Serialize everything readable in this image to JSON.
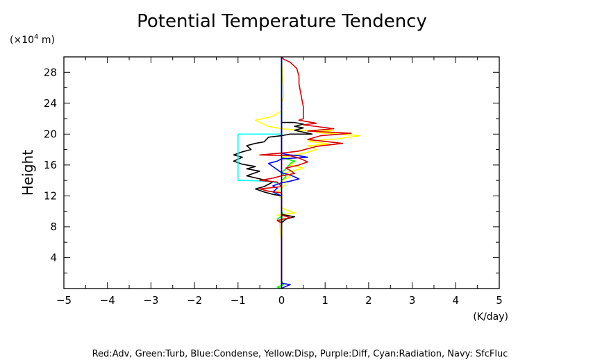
{
  "chart_data": {
    "type": "line",
    "title": "Potential Temperature Tendency",
    "ylabel": "Height",
    "y_unit_prefix": "(×10",
    "y_unit_exp": "4",
    "y_unit_suffix": " m)",
    "x_unit": "(K/day)",
    "xlim": [
      -5,
      5
    ],
    "ylim": [
      0,
      30
    ],
    "x_ticks": [
      -5,
      -4,
      -3,
      -2,
      -1,
      0,
      1,
      2,
      3,
      4,
      5
    ],
    "y_ticks": [
      4,
      8,
      12,
      16,
      20,
      24,
      28
    ],
    "x_tick_labels": [
      "−5",
      "−4",
      "−3",
      "−2",
      "−1",
      "0",
      "1",
      "2",
      "3",
      "4",
      "5"
    ],
    "y_tick_labels": [
      "4",
      "8",
      "12",
      "16",
      "20",
      "24",
      "28"
    ],
    "legend_text": "Red:Adv, Green:Turb, Blue:Condense, Yellow:Disp, Purple:Diff, Cyan:Radiation, Navy: SfcFluc",
    "grid": false,
    "series": [
      {
        "color": "#ffff00",
        "points": [
          [
            0,
            0
          ],
          [
            0,
            6
          ],
          [
            -0.05,
            8.5
          ],
          [
            0.1,
            9
          ],
          [
            -0.1,
            9.5
          ],
          [
            0.3,
            9.8
          ],
          [
            0.1,
            10.2
          ],
          [
            0,
            10.5
          ],
          [
            0,
            11.5
          ],
          [
            -0.1,
            12.5
          ],
          [
            0,
            13
          ],
          [
            0.1,
            13.5
          ],
          [
            0,
            14
          ],
          [
            0.2,
            14.5
          ],
          [
            0.1,
            15
          ],
          [
            0.3,
            15.3
          ],
          [
            0.5,
            15.6
          ],
          [
            0.2,
            16
          ],
          [
            0.3,
            16.5
          ],
          [
            0.1,
            16.8
          ],
          [
            0,
            17
          ],
          [
            0.5,
            17.5
          ],
          [
            0.8,
            18
          ],
          [
            0.6,
            18.5
          ],
          [
            1.1,
            18.7
          ],
          [
            0.6,
            19.1
          ],
          [
            1.3,
            19.4
          ],
          [
            1.8,
            19.8
          ],
          [
            0.8,
            20.2
          ],
          [
            1.2,
            20.5
          ],
          [
            0.4,
            20.5
          ],
          [
            0,
            20.7
          ],
          [
            -0.3,
            21
          ],
          [
            -0.6,
            21.8
          ],
          [
            -0.2,
            22.3
          ],
          [
            0,
            23
          ],
          [
            0,
            24
          ],
          [
            0.05,
            25
          ],
          [
            0,
            30
          ]
        ]
      },
      {
        "color": "#00ff00",
        "points": [
          [
            0,
            0
          ],
          [
            -0.1,
            0.2
          ],
          [
            0.05,
            0.5
          ],
          [
            0,
            1
          ],
          [
            0,
            8.5
          ],
          [
            -0.1,
            9
          ],
          [
            0.05,
            9.5
          ],
          [
            0,
            10
          ],
          [
            0,
            14
          ],
          [
            0.1,
            14.5
          ],
          [
            0,
            15
          ],
          [
            0.1,
            15.5
          ],
          [
            0.2,
            16.2
          ],
          [
            0.3,
            16.5
          ],
          [
            0.1,
            16.8
          ],
          [
            0,
            17
          ],
          [
            0,
            30
          ]
        ]
      },
      {
        "color": "#ff00ff",
        "points": [
          [
            0,
            0
          ],
          [
            0,
            30
          ]
        ]
      },
      {
        "color": "#000000",
        "points": [
          [
            0,
            0
          ],
          [
            0,
            8.5
          ],
          [
            0.1,
            9
          ],
          [
            0.3,
            9.3
          ],
          [
            0,
            9.6
          ],
          [
            0,
            12
          ],
          [
            -0.2,
            12.2
          ],
          [
            -0.4,
            12.5
          ],
          [
            -0.6,
            12.9
          ],
          [
            -0.4,
            13.2
          ],
          [
            -0.2,
            13.8
          ],
          [
            -0.5,
            14.2
          ],
          [
            -0.8,
            14.6
          ],
          [
            -0.6,
            15
          ],
          [
            -0.5,
            15.2
          ],
          [
            -0.8,
            15.5
          ],
          [
            -0.6,
            15.8
          ],
          [
            -0.9,
            16.1
          ],
          [
            -1.1,
            16.5
          ],
          [
            -0.9,
            17
          ],
          [
            -1.1,
            17.3
          ],
          [
            -0.9,
            17.7
          ],
          [
            -0.7,
            18
          ],
          [
            -0.8,
            18.5
          ],
          [
            -0.6,
            18.8
          ],
          [
            -0.4,
            19
          ],
          [
            -0.3,
            19.6
          ],
          [
            0,
            19.8
          ],
          [
            0.2,
            20
          ],
          [
            0.7,
            20
          ],
          [
            0.3,
            20.5
          ],
          [
            0.5,
            20.8
          ],
          [
            0.3,
            21
          ],
          [
            0.5,
            21.3
          ],
          [
            0.3,
            21.5
          ],
          [
            0,
            21.5
          ],
          [
            0,
            30
          ]
        ]
      },
      {
        "color": "#00ffff",
        "points": [
          [
            0,
            0
          ],
          [
            0,
            13.5
          ],
          [
            -0.2,
            13.8
          ],
          [
            -0.4,
            13.9
          ],
          [
            -0.8,
            14
          ],
          [
            -1,
            14
          ],
          [
            -1,
            20
          ],
          [
            0,
            20
          ],
          [
            0,
            30
          ]
        ]
      },
      {
        "color": "#0000ff",
        "points": [
          [
            0,
            0
          ],
          [
            0.1,
            0.3
          ],
          [
            0.2,
            0.5
          ],
          [
            0,
            0.7
          ],
          [
            0,
            12
          ],
          [
            -0.2,
            12.5
          ],
          [
            -0.1,
            13
          ],
          [
            -0.2,
            13.3
          ],
          [
            0,
            13.7
          ],
          [
            0.2,
            13.9
          ],
          [
            0.4,
            14.2
          ],
          [
            0.2,
            14.7
          ],
          [
            0,
            15
          ],
          [
            -0.1,
            15.4
          ],
          [
            -0.2,
            15.8
          ],
          [
            -0.3,
            16.2
          ],
          [
            -0.1,
            16.5
          ],
          [
            0,
            16.8
          ],
          [
            0.3,
            16.9
          ],
          [
            0.6,
            17
          ],
          [
            0.4,
            17.2
          ],
          [
            0.2,
            17.3
          ],
          [
            0,
            17.5
          ],
          [
            0,
            30
          ]
        ]
      },
      {
        "color": "#dd0000",
        "points": [
          [
            0,
            0
          ],
          [
            0,
            8.5
          ],
          [
            -0.1,
            8.8
          ],
          [
            0.2,
            9.2
          ],
          [
            0,
            9.5
          ],
          [
            0,
            12.4
          ],
          [
            -0.3,
            12.6
          ],
          [
            -0.5,
            12.9
          ],
          [
            0,
            13.2
          ],
          [
            -0.1,
            13.8
          ],
          [
            -0.5,
            14
          ],
          [
            -0.2,
            14.3
          ],
          [
            0,
            14.6
          ],
          [
            0.3,
            14.9
          ],
          [
            0.2,
            15.3
          ],
          [
            0.1,
            15.6
          ],
          [
            0.4,
            16
          ],
          [
            0.6,
            16.4
          ],
          [
            0.4,
            16.9
          ],
          [
            0.2,
            17.2
          ],
          [
            -0.5,
            17.3
          ],
          [
            0.1,
            17.6
          ],
          [
            0.4,
            17.8
          ],
          [
            0.8,
            18.4
          ],
          [
            1.4,
            18.8
          ],
          [
            0.6,
            19.3
          ],
          [
            0.9,
            19.8
          ],
          [
            1.6,
            20.1
          ],
          [
            0.6,
            20.4
          ],
          [
            1.2,
            20.7
          ],
          [
            0.5,
            21.2
          ],
          [
            0.8,
            21.4
          ],
          [
            0.4,
            21.8
          ],
          [
            0.5,
            22
          ],
          [
            0.5,
            23.5
          ],
          [
            0.45,
            25
          ],
          [
            0.4,
            26.5
          ],
          [
            0.4,
            27.5
          ],
          [
            0.35,
            28.5
          ],
          [
            0.2,
            29.3
          ],
          [
            0.05,
            29.7
          ],
          [
            0,
            30
          ]
        ]
      },
      {
        "color": "#000080",
        "points": [
          [
            0,
            0
          ],
          [
            0,
            30
          ]
        ]
      }
    ]
  }
}
